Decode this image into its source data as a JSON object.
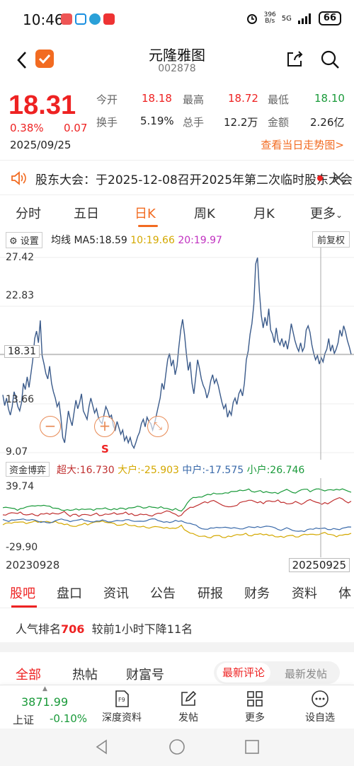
{
  "status": {
    "time": "10:46",
    "net_speed": "396",
    "net_unit": "B/s",
    "signal": "5G",
    "battery": "66"
  },
  "header": {
    "name": "元隆雅图",
    "code": "002878"
  },
  "quote": {
    "price": "18.31",
    "pct": "0.38%",
    "change": "0.07",
    "date": "2025/09/25",
    "open_label": "今开",
    "open": "18.18",
    "high_label": "最高",
    "high": "18.72",
    "low_label": "最低",
    "low": "18.10",
    "turnover_label": "换手",
    "turnover": "5.19%",
    "volume_label": "总手",
    "volume": "12.2万",
    "amount_label": "金额",
    "amount": "2.26亿",
    "trend_link": "查看当日走势图>"
  },
  "notice": {
    "text": "股东大会：于2025-12-08召开2025年第二次临时股东大会"
  },
  "kline_tabs": [
    "分时",
    "五日",
    "日K",
    "周K",
    "月K",
    "更多"
  ],
  "chart_header": {
    "settings": "设置",
    "ma_title": "均线",
    "ma5": "MA5:18.59",
    "ma10": "10:19.66",
    "ma20": "20:19.97",
    "restore": "前复权"
  },
  "chart_data": {
    "type": "line",
    "title": "",
    "y_ticks": [
      "27.42",
      "22.83",
      "18.31",
      "13.66",
      "9.07"
    ],
    "ylim": [
      9.07,
      27.42
    ],
    "current_price": "18.31",
    "series": [
      {
        "values": [
          14.5,
          13.5,
          14.2,
          13.2,
          12.6,
          13.4,
          14.8,
          14.2,
          13.4,
          13.0,
          13.8,
          15.6,
          15.0,
          16.2,
          15.2,
          16.5,
          17.8,
          19.8,
          20.5,
          19.4,
          21.5,
          18.2,
          17.4,
          16.5,
          16.0,
          17.2,
          15.6,
          14.8,
          14.2,
          13.4,
          13.8,
          12.4,
          10.5,
          10.0,
          11.5,
          13.0,
          12.2,
          11.6,
          12.8,
          14.0,
          13.2,
          13.8,
          14.6,
          13.0,
          12.6,
          12.2,
          13.4,
          14.2,
          13.5,
          12.8,
          13.2,
          12.4,
          12.0,
          11.8,
          12.6,
          13.4,
          13.0,
          12.4,
          12.6,
          11.6,
          11.2,
          12.0,
          11.4,
          10.8,
          11.2,
          10.2,
          10.6,
          10.0,
          10.5,
          9.8,
          9.5,
          10.0,
          10.6,
          11.0,
          11.8,
          12.2,
          11.5,
          12.4,
          12.0,
          11.8,
          11.2,
          11.8,
          12.6,
          13.4,
          14.2,
          15.6,
          15.0,
          16.4,
          17.8,
          18.4,
          17.2,
          17.8,
          16.4,
          17.2,
          19.0,
          20.6,
          21.6,
          20.2,
          18.4,
          16.8,
          17.6,
          15.6,
          14.6,
          16.2,
          17.8,
          17.0,
          16.0,
          15.4,
          15.0,
          14.2,
          14.8,
          15.8,
          16.4,
          15.6,
          16.0,
          15.4,
          14.6,
          13.8,
          13.2,
          13.6,
          12.4,
          13.0,
          12.6,
          13.8,
          14.2,
          13.6,
          14.6,
          15.0,
          14.4,
          15.6,
          17.8,
          18.6,
          20.2,
          21.2,
          23.0,
          26.8,
          27.4,
          24.2,
          22.0,
          20.8,
          21.8,
          21.0,
          22.6,
          20.6,
          20.2,
          19.4,
          20.8,
          19.6,
          19.2,
          19.8,
          19.0,
          19.6,
          18.8,
          19.8,
          21.2,
          20.4,
          19.6,
          19.0,
          18.6,
          19.4,
          18.6,
          19.0,
          20.6,
          21.0,
          20.4,
          19.2,
          18.4,
          17.8,
          18.2,
          17.4,
          18.0,
          17.6,
          18.4,
          18.8,
          19.8,
          18.6,
          19.2,
          18.4,
          18.8,
          19.4,
          20.6,
          20.0,
          21.0,
          20.4,
          19.6,
          19.0,
          18.31
        ]
      }
    ],
    "flow_legend": {
      "xl": "超大:16.730",
      "l": "大户:-25.903",
      "m": "中户:-17.575",
      "s": "小户:26.746"
    },
    "flow_ticks": [
      "39.74",
      "-29.90"
    ],
    "x_start": "20230928",
    "x_end": "20250925"
  },
  "flow_header": {
    "label": "资金博弈"
  },
  "sell_mark": "S",
  "info_tabs": [
    "股吧",
    "盘口",
    "资讯",
    "公告",
    "研报",
    "财务",
    "资料",
    "体"
  ],
  "rank": {
    "prefix": "人气排名",
    "num": "706",
    "suffix": "较前1小时下降11名"
  },
  "post_tabs": {
    "all": "全部",
    "hot": "热帖",
    "wealth": "财富号",
    "latest_comment": "最新评论",
    "latest_post": "最新发帖"
  },
  "toolbar": {
    "index_value": "3871.99",
    "index_name": "上证",
    "index_pct": "-0.10%",
    "deep": "深度资料",
    "post": "发帖",
    "more": "更多",
    "watch": "设自选"
  },
  "colors": {
    "accent": "#f26b21",
    "up": "#e22",
    "down": "#1a9a3a",
    "line": "#3a5a8a",
    "ma10": "#e6b800",
    "ma20": "#c030c0"
  }
}
